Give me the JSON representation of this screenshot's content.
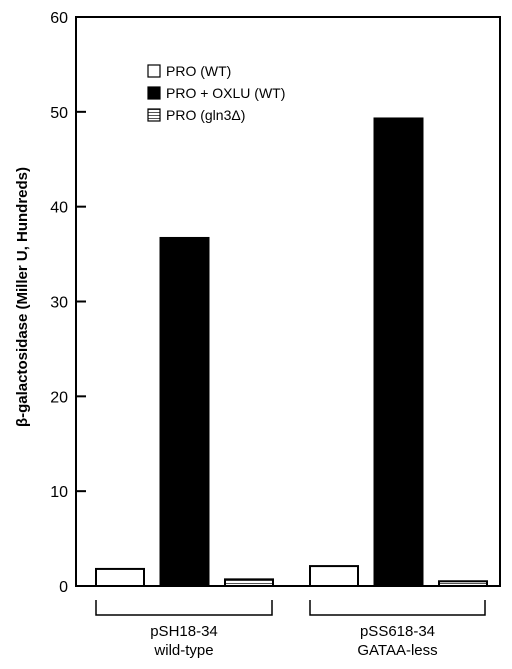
{
  "chart_data": {
    "type": "bar",
    "categories": [
      {
        "line1": "pSH18-34",
        "line2": "wild-type"
      },
      {
        "line1": "pSS618-34",
        "line2": "GATAA-less"
      }
    ],
    "series": [
      {
        "name": "PRO (WT)",
        "fill": "white",
        "values": [
          1.8,
          2.1
        ]
      },
      {
        "name": "PRO + OXLU (WT)",
        "fill": "black",
        "values": [
          36.7,
          49.3
        ]
      },
      {
        "name": "PRO  (gln3Δ)",
        "fill": "hatched",
        "values": [
          0.7,
          0.5
        ]
      }
    ],
    "ylabel": "β-galactosidase (Miller U, Hundreds)",
    "ylim": [
      0,
      60
    ],
    "yticks": [
      "0",
      "10",
      "20",
      "30",
      "40",
      "50",
      "60"
    ],
    "legend_position": "top-left inside",
    "grid": false
  },
  "colors": {
    "axis": "#000000",
    "bar_black": "#000000",
    "bar_white": "#ffffff",
    "hatch_line": "#555555"
  }
}
